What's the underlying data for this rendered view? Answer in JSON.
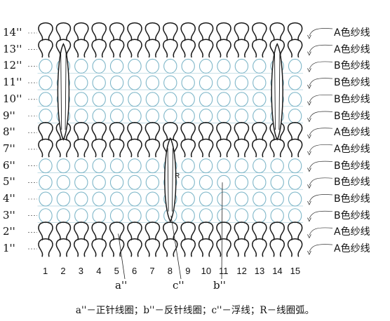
{
  "rows": [
    {
      "label": "14''",
      "yarn": "A色纱线",
      "color": "A"
    },
    {
      "label": "13''",
      "yarn": "A色纱线",
      "color": "A"
    },
    {
      "label": "12''",
      "yarn": "B色纱线",
      "color": "B"
    },
    {
      "label": "11''",
      "yarn": "B色纱线",
      "color": "B"
    },
    {
      "label": "10''",
      "yarn": "B色纱线",
      "color": "B"
    },
    {
      "label": "9''",
      "yarn": "B色纱线",
      "color": "B"
    },
    {
      "label": "8''",
      "yarn": "A色纱线",
      "color": "A"
    },
    {
      "label": "7''",
      "yarn": "A色纱线",
      "color": "A"
    },
    {
      "label": "6''",
      "yarn": "B色纱线",
      "color": "B"
    },
    {
      "label": "5''",
      "yarn": "B色纱线",
      "color": "B"
    },
    {
      "label": "4''",
      "yarn": "B色纱线",
      "color": "B"
    },
    {
      "label": "3''",
      "yarn": "B色纱线",
      "color": "B"
    },
    {
      "label": "2''",
      "yarn": "A色纱线",
      "color": "A"
    },
    {
      "label": "1''",
      "yarn": "A色纱线",
      "color": "A"
    }
  ],
  "columns": [
    "1",
    "2",
    "3",
    "4",
    "5",
    "6",
    "7",
    "8",
    "9",
    "10",
    "11",
    "12",
    "13",
    "14",
    "15"
  ],
  "pointers": {
    "a": "a''",
    "c": "c''",
    "b": "b''"
  },
  "loop_arc_label": "R",
  "caption": "a''－正针线圈；b''－反针线圈；c''－浮线；R－线圈弧。",
  "colors": {
    "A": "#1a1a1a",
    "B": "#7fb7c9"
  }
}
